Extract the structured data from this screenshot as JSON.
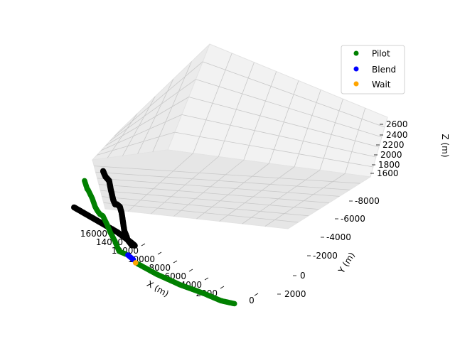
{
  "chart_data": {
    "type": "scatter",
    "projection": "3d",
    "xlabel": "X (m)",
    "ylabel": "Y (m)",
    "zlabel": "Z (m)",
    "x_ticks": [
      "16000",
      "14000",
      "12000",
      "10000",
      "8000",
      "6000",
      "4000",
      "2000",
      "0"
    ],
    "y_ticks": [
      "-8000",
      "-6000",
      "-4000",
      "-2000",
      "0",
      "2000"
    ],
    "z_ticks": [
      "2600",
      "2400",
      "2200",
      "2000",
      "1800",
      "1600"
    ],
    "xlim": [
      -1000,
      17000
    ],
    "ylim": [
      -10000,
      2800
    ],
    "zlim": [
      1500,
      2600
    ],
    "grid": true,
    "legend": {
      "placement": "top-right",
      "entries": [
        {
          "label": "Pilot",
          "color": "#008000"
        },
        {
          "label": "Blend",
          "color": "#0000ff"
        },
        {
          "label": "Wait",
          "color": "#ffa500"
        }
      ]
    },
    "series": [
      {
        "color": "#000000",
        "points": [
          [
            16300,
            -1200,
            1520
          ],
          [
            14000,
            -1200,
            1520
          ],
          [
            12000,
            -1200,
            1520
          ],
          [
            10500,
            -1300,
            1520
          ],
          [
            9700,
            -1700,
            1560
          ],
          [
            9300,
            -2300,
            1620
          ],
          [
            9000,
            -2900,
            1700
          ],
          [
            8900,
            -3300,
            1780
          ],
          [
            8700,
            -3700,
            1900
          ],
          [
            8300,
            -4200,
            1980
          ],
          [
            7900,
            -4800,
            2050
          ],
          [
            7500,
            -5300,
            2100
          ],
          [
            7100,
            -5800,
            2170
          ],
          [
            6900,
            -6200,
            2260
          ],
          [
            6600,
            -6600,
            2340
          ],
          [
            6200,
            -7100,
            2400
          ],
          [
            5800,
            -7600,
            2460
          ],
          [
            5400,
            -8100,
            2530
          ],
          [
            5000,
            -8500,
            2580
          ]
        ]
      },
      {
        "name": "Pilot",
        "color": "#008000",
        "points": [
          [
            12500,
            -3600,
            1940
          ],
          [
            12200,
            -3700,
            1930
          ],
          [
            12000,
            -3800,
            1930
          ],
          [
            11800,
            -3900,
            1940
          ],
          [
            11500,
            -3800,
            1900
          ],
          [
            11100,
            -3900,
            1880
          ],
          [
            10800,
            -4000,
            1880
          ],
          [
            10400,
            -4100,
            1880
          ],
          [
            10100,
            -4100,
            1880
          ],
          [
            9800,
            -4000,
            1840
          ],
          [
            9600,
            -3900,
            1800
          ],
          [
            9500,
            -3600,
            1740
          ],
          [
            9300,
            -3400,
            1680
          ],
          [
            9100,
            -3000,
            1640
          ]
        ]
      },
      {
        "name": "Pilot",
        "color": "#008000",
        "points": [
          [
            8600,
            -2400,
            1560
          ],
          [
            7000,
            -2200,
            1540
          ],
          [
            5000,
            -1900,
            1520
          ],
          [
            3000,
            -1600,
            1510
          ],
          [
            1500,
            -1400,
            1500
          ],
          [
            400,
            -1200,
            1500
          ]
        ]
      },
      {
        "name": "Blend",
        "color": "#0000ff",
        "points": [
          [
            9000,
            -2900,
            1630
          ],
          [
            8800,
            -2600,
            1590
          ]
        ]
      },
      {
        "name": "Wait",
        "color": "#ffa500",
        "points": [
          [
            8700,
            -2500,
            1570
          ]
        ]
      }
    ]
  }
}
